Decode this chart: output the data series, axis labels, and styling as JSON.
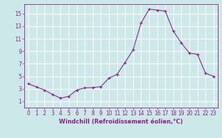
{
  "x": [
    0,
    1,
    2,
    3,
    4,
    5,
    6,
    7,
    8,
    9,
    10,
    11,
    12,
    13,
    14,
    15,
    16,
    17,
    18,
    19,
    20,
    21,
    22,
    23
  ],
  "y": [
    3.8,
    3.3,
    2.8,
    2.1,
    1.5,
    1.8,
    2.8,
    3.15,
    3.2,
    3.35,
    4.7,
    5.3,
    7.2,
    9.2,
    13.5,
    15.7,
    15.55,
    15.4,
    12.2,
    10.3,
    8.7,
    8.5,
    5.5,
    5.0
  ],
  "line_color": "#882288",
  "marker": "+",
  "marker_color": "#882288",
  "bg_color": "#cce8e8",
  "grid_color": "#ffffff",
  "axis_color": "#882288",
  "xlabel": "Windchill (Refroidissement éolien,°C)",
  "xlim": [
    -0.5,
    23.5
  ],
  "ylim": [
    0,
    16.5
  ],
  "xticks": [
    0,
    1,
    2,
    3,
    4,
    5,
    6,
    7,
    8,
    9,
    10,
    11,
    12,
    13,
    14,
    15,
    16,
    17,
    18,
    19,
    20,
    21,
    22,
    23
  ],
  "yticks": [
    1,
    3,
    5,
    7,
    9,
    11,
    13,
    15
  ],
  "tick_fontsize": 5.5,
  "label_fontsize": 6.0
}
